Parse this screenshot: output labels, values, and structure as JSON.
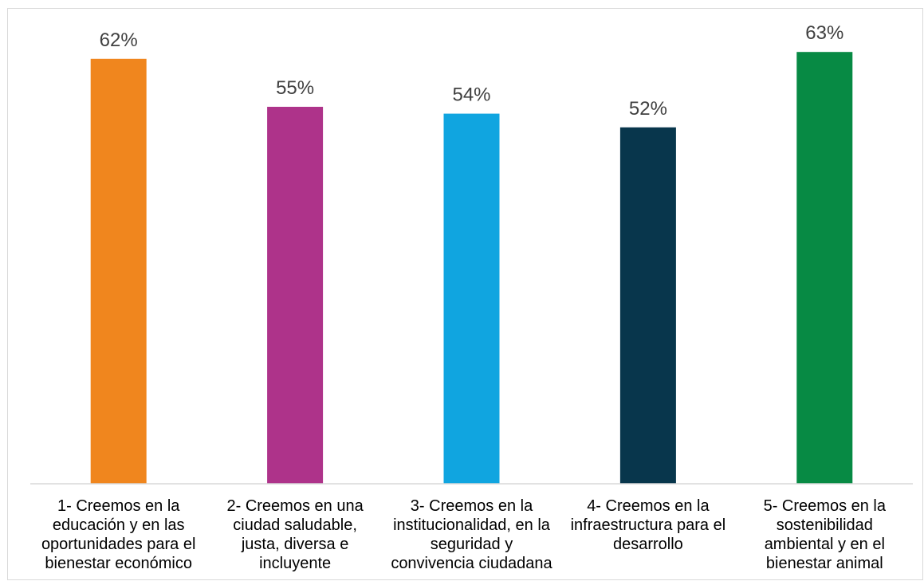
{
  "chart_data": {
    "type": "bar",
    "title": "",
    "xlabel": "",
    "ylabel": "",
    "ylim": [
      0,
      100
    ],
    "categories": [
      "1- Creemos en la\neducación y en las\noportunidades para el\nbienestar económico",
      "2- Creemos en una\nciudad saludable,\njusta, diversa e\nincluyente",
      "3- Creemos en la\ninstitucionalidad, en la\nseguridad y\nconvivencia ciudadana",
      "4- Creemos en la\ninfraestructura para el\ndesarrollo",
      "5- Creemos en la\nsostenibilidad\nambiental y en el\nbienestar animal"
    ],
    "values": [
      62,
      55,
      54,
      52,
      63
    ],
    "value_labels": [
      "62%",
      "55%",
      "54%",
      "52%",
      "63%"
    ],
    "colors": [
      "#f0861e",
      "#ae338a",
      "#10a5e0",
      "#08364c",
      "#078a44"
    ],
    "grid": false,
    "legend": "none"
  }
}
